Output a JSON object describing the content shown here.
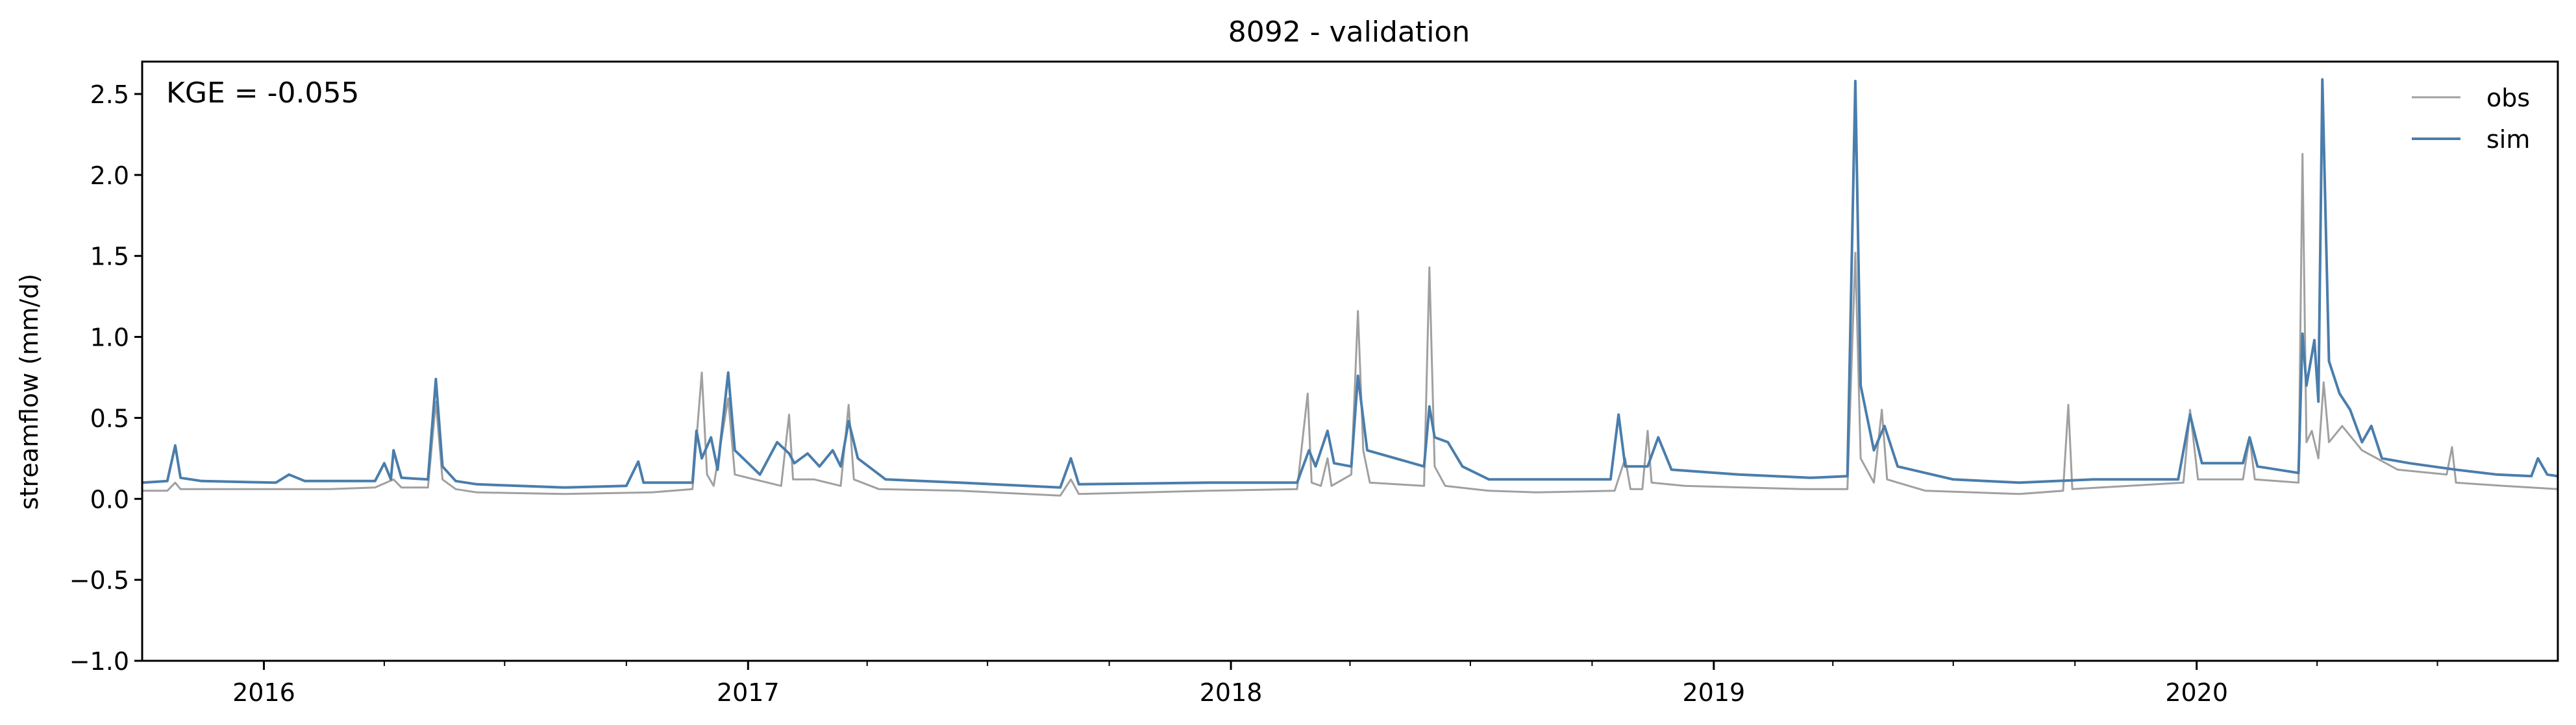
{
  "chart_data": {
    "type": "line",
    "title": "8092 - validation",
    "xlabel": "",
    "ylabel": "streamflow (mm/d)",
    "annotation": "KGE = -0.055",
    "xlim": [
      "2015-10-01",
      "2020-09-30"
    ],
    "ylim": [
      -1.0,
      2.7
    ],
    "yticks": [
      -1.0,
      -0.5,
      0.0,
      0.5,
      1.0,
      1.5,
      2.0,
      2.5
    ],
    "ytick_labels": [
      "−1.0",
      "−0.5",
      "0.0",
      "0.5",
      "1.0",
      "1.5",
      "2.0",
      "2.5"
    ],
    "xticks": [
      "2016-01-01",
      "2017-01-01",
      "2018-01-01",
      "2019-01-01",
      "2020-01-01"
    ],
    "xtick_labels": [
      "2016",
      "2017",
      "2018",
      "2019",
      "2020"
    ],
    "grid": false,
    "legend_position": "top-right",
    "series": [
      {
        "name": "obs",
        "color": "#a0a0a0",
        "points": [
          [
            "2015-10-01",
            0.05
          ],
          [
            "2015-10-20",
            0.05
          ],
          [
            "2015-10-26",
            0.1
          ],
          [
            "2015-10-30",
            0.06
          ],
          [
            "2015-12-15",
            0.06
          ],
          [
            "2016-02-20",
            0.06
          ],
          [
            "2016-03-25",
            0.07
          ],
          [
            "2016-04-08",
            0.12
          ],
          [
            "2016-04-14",
            0.07
          ],
          [
            "2016-05-04",
            0.07
          ],
          [
            "2016-05-10",
            0.6
          ],
          [
            "2016-05-15",
            0.12
          ],
          [
            "2016-05-25",
            0.06
          ],
          [
            "2016-06-10",
            0.04
          ],
          [
            "2016-08-15",
            0.03
          ],
          [
            "2016-10-20",
            0.04
          ],
          [
            "2016-11-20",
            0.06
          ],
          [
            "2016-11-27",
            0.78
          ],
          [
            "2016-12-01",
            0.15
          ],
          [
            "2016-12-06",
            0.08
          ],
          [
            "2016-12-17",
            0.62
          ],
          [
            "2016-12-22",
            0.15
          ],
          [
            "2017-01-26",
            0.08
          ],
          [
            "2017-02-01",
            0.52
          ],
          [
            "2017-02-04",
            0.12
          ],
          [
            "2017-02-20",
            0.12
          ],
          [
            "2017-03-12",
            0.08
          ],
          [
            "2017-03-18",
            0.58
          ],
          [
            "2017-03-22",
            0.12
          ],
          [
            "2017-04-10",
            0.06
          ],
          [
            "2017-06-10",
            0.05
          ],
          [
            "2017-08-25",
            0.02
          ],
          [
            "2017-09-02",
            0.12
          ],
          [
            "2017-09-08",
            0.03
          ],
          [
            "2017-12-15",
            0.05
          ],
          [
            "2018-02-20",
            0.06
          ],
          [
            "2018-02-28",
            0.65
          ],
          [
            "2018-03-03",
            0.1
          ],
          [
            "2018-03-10",
            0.08
          ],
          [
            "2018-03-15",
            0.25
          ],
          [
            "2018-03-18",
            0.08
          ],
          [
            "2018-04-02",
            0.15
          ],
          [
            "2018-04-07",
            1.16
          ],
          [
            "2018-04-11",
            0.3
          ],
          [
            "2018-04-16",
            0.1
          ],
          [
            "2018-05-27",
            0.08
          ],
          [
            "2018-05-31",
            1.43
          ],
          [
            "2018-06-04",
            0.2
          ],
          [
            "2018-06-12",
            0.08
          ],
          [
            "2018-07-15",
            0.05
          ],
          [
            "2018-08-20",
            0.04
          ],
          [
            "2018-10-18",
            0.05
          ],
          [
            "2018-10-26",
            0.25
          ],
          [
            "2018-10-30",
            0.06
          ],
          [
            "2018-11-08",
            0.06
          ],
          [
            "2018-11-12",
            0.42
          ],
          [
            "2018-11-15",
            0.1
          ],
          [
            "2018-12-10",
            0.08
          ],
          [
            "2019-03-10",
            0.06
          ],
          [
            "2019-04-12",
            0.06
          ],
          [
            "2019-04-18",
            1.52
          ],
          [
            "2019-04-22",
            0.25
          ],
          [
            "2019-05-02",
            0.1
          ],
          [
            "2019-05-08",
            0.55
          ],
          [
            "2019-05-12",
            0.12
          ],
          [
            "2019-06-10",
            0.05
          ],
          [
            "2019-08-20",
            0.03
          ],
          [
            "2019-09-22",
            0.05
          ],
          [
            "2019-09-26",
            0.58
          ],
          [
            "2019-09-29",
            0.06
          ],
          [
            "2019-12-22",
            0.1
          ],
          [
            "2019-12-27",
            0.55
          ],
          [
            "2020-01-02",
            0.12
          ],
          [
            "2020-02-05",
            0.12
          ],
          [
            "2020-02-10",
            0.38
          ],
          [
            "2020-02-14",
            0.12
          ],
          [
            "2020-03-18",
            0.1
          ],
          [
            "2020-03-21",
            2.13
          ],
          [
            "2020-03-24",
            0.35
          ],
          [
            "2020-03-28",
            0.42
          ],
          [
            "2020-04-02",
            0.25
          ],
          [
            "2020-04-06",
            0.72
          ],
          [
            "2020-04-10",
            0.35
          ],
          [
            "2020-04-20",
            0.45
          ],
          [
            "2020-05-05",
            0.3
          ],
          [
            "2020-06-01",
            0.18
          ],
          [
            "2020-07-08",
            0.15
          ],
          [
            "2020-07-12",
            0.32
          ],
          [
            "2020-07-15",
            0.1
          ],
          [
            "2020-08-20",
            0.08
          ],
          [
            "2020-09-30",
            0.06
          ]
        ]
      },
      {
        "name": "sim",
        "color": "#4a7dab",
        "points": [
          [
            "2015-10-01",
            0.1
          ],
          [
            "2015-10-20",
            0.11
          ],
          [
            "2015-10-26",
            0.33
          ],
          [
            "2015-10-30",
            0.13
          ],
          [
            "2015-11-15",
            0.11
          ],
          [
            "2016-01-10",
            0.1
          ],
          [
            "2016-01-20",
            0.15
          ],
          [
            "2016-02-01",
            0.11
          ],
          [
            "2016-03-25",
            0.11
          ],
          [
            "2016-04-01",
            0.22
          ],
          [
            "2016-04-06",
            0.12
          ],
          [
            "2016-04-08",
            0.3
          ],
          [
            "2016-04-14",
            0.13
          ],
          [
            "2016-05-04",
            0.12
          ],
          [
            "2016-05-10",
            0.74
          ],
          [
            "2016-05-15",
            0.2
          ],
          [
            "2016-05-25",
            0.11
          ],
          [
            "2016-06-10",
            0.09
          ],
          [
            "2016-08-15",
            0.07
          ],
          [
            "2016-10-01",
            0.08
          ],
          [
            "2016-10-10",
            0.23
          ],
          [
            "2016-10-14",
            0.1
          ],
          [
            "2016-11-20",
            0.1
          ],
          [
            "2016-11-23",
            0.42
          ],
          [
            "2016-11-27",
            0.25
          ],
          [
            "2016-12-04",
            0.38
          ],
          [
            "2016-12-09",
            0.18
          ],
          [
            "2016-12-17",
            0.78
          ],
          [
            "2016-12-22",
            0.3
          ],
          [
            "2017-01-10",
            0.15
          ],
          [
            "2017-01-23",
            0.35
          ],
          [
            "2017-02-01",
            0.28
          ],
          [
            "2017-02-05",
            0.22
          ],
          [
            "2017-02-15",
            0.28
          ],
          [
            "2017-02-24",
            0.2
          ],
          [
            "2017-03-06",
            0.3
          ],
          [
            "2017-03-12",
            0.2
          ],
          [
            "2017-03-18",
            0.48
          ],
          [
            "2017-03-25",
            0.25
          ],
          [
            "2017-04-15",
            0.12
          ],
          [
            "2017-06-10",
            0.1
          ],
          [
            "2017-08-25",
            0.07
          ],
          [
            "2017-09-02",
            0.25
          ],
          [
            "2017-09-08",
            0.09
          ],
          [
            "2017-12-15",
            0.1
          ],
          [
            "2018-02-20",
            0.1
          ],
          [
            "2018-03-01",
            0.3
          ],
          [
            "2018-03-06",
            0.2
          ],
          [
            "2018-03-15",
            0.42
          ],
          [
            "2018-03-20",
            0.22
          ],
          [
            "2018-04-02",
            0.2
          ],
          [
            "2018-04-07",
            0.76
          ],
          [
            "2018-04-14",
            0.3
          ],
          [
            "2018-05-27",
            0.2
          ],
          [
            "2018-05-31",
            0.57
          ],
          [
            "2018-06-04",
            0.38
          ],
          [
            "2018-06-14",
            0.35
          ],
          [
            "2018-06-25",
            0.2
          ],
          [
            "2018-07-15",
            0.12
          ],
          [
            "2018-08-20",
            0.12
          ],
          [
            "2018-10-15",
            0.12
          ],
          [
            "2018-10-21",
            0.52
          ],
          [
            "2018-10-26",
            0.2
          ],
          [
            "2018-11-12",
            0.2
          ],
          [
            "2018-11-20",
            0.38
          ],
          [
            "2018-11-30",
            0.18
          ],
          [
            "2019-01-20",
            0.15
          ],
          [
            "2019-03-15",
            0.13
          ],
          [
            "2019-04-12",
            0.14
          ],
          [
            "2019-04-18",
            2.58
          ],
          [
            "2019-04-22",
            0.7
          ],
          [
            "2019-05-02",
            0.3
          ],
          [
            "2019-05-10",
            0.45
          ],
          [
            "2019-05-20",
            0.2
          ],
          [
            "2019-07-01",
            0.12
          ],
          [
            "2019-08-20",
            0.1
          ],
          [
            "2019-10-15",
            0.12
          ],
          [
            "2019-12-18",
            0.12
          ],
          [
            "2019-12-27",
            0.52
          ],
          [
            "2020-01-05",
            0.22
          ],
          [
            "2020-02-05",
            0.22
          ],
          [
            "2020-02-10",
            0.38
          ],
          [
            "2020-02-16",
            0.2
          ],
          [
            "2020-03-18",
            0.16
          ],
          [
            "2020-03-21",
            1.02
          ],
          [
            "2020-03-24",
            0.7
          ],
          [
            "2020-03-30",
            0.98
          ],
          [
            "2020-04-02",
            0.6
          ],
          [
            "2020-04-05",
            2.59
          ],
          [
            "2020-04-10",
            0.85
          ],
          [
            "2020-04-18",
            0.65
          ],
          [
            "2020-04-26",
            0.55
          ],
          [
            "2020-05-05",
            0.35
          ],
          [
            "2020-05-12",
            0.45
          ],
          [
            "2020-05-20",
            0.25
          ],
          [
            "2020-06-10",
            0.22
          ],
          [
            "2020-07-15",
            0.18
          ],
          [
            "2020-08-15",
            0.15
          ],
          [
            "2020-09-10",
            0.14
          ],
          [
            "2020-09-15",
            0.25
          ],
          [
            "2020-09-22",
            0.15
          ],
          [
            "2020-09-30",
            0.14
          ]
        ]
      }
    ]
  }
}
